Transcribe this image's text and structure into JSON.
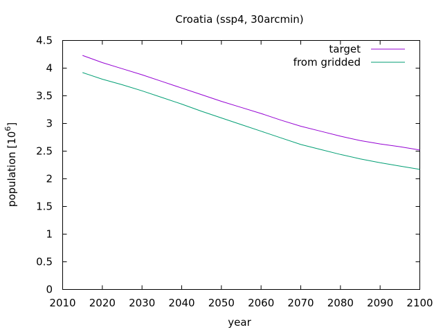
{
  "chart_data": {
    "type": "line",
    "title": "Croatia (ssp4, 30arcmin)",
    "xlabel": "year",
    "ylabel_main": "population [10",
    "ylabel_exp": "6",
    "ylabel_close": "]",
    "xlim": [
      2010,
      2100
    ],
    "ylim": [
      0,
      4.5
    ],
    "xticks": [
      "2010",
      "2020",
      "2030",
      "2040",
      "2050",
      "2060",
      "2070",
      "2080",
      "2090",
      "2100"
    ],
    "yticks": [
      "0",
      "0.5",
      "1",
      "1.5",
      "2",
      "2.5",
      "3",
      "3.5",
      "4",
      "4.5"
    ],
    "grid": false,
    "legend": "top-right",
    "x": [
      2015,
      2020,
      2025,
      2030,
      2035,
      2040,
      2045,
      2050,
      2055,
      2060,
      2065,
      2070,
      2075,
      2080,
      2085,
      2090,
      2095,
      2100
    ],
    "series": [
      {
        "name": "target",
        "color": "#9400d3",
        "values": [
          4.23,
          4.1,
          3.99,
          3.88,
          3.76,
          3.64,
          3.52,
          3.4,
          3.29,
          3.18,
          3.06,
          2.95,
          2.86,
          2.77,
          2.69,
          2.63,
          2.58,
          2.52
        ]
      },
      {
        "name": "from gridded",
        "color": "#009e73",
        "values": [
          3.92,
          3.8,
          3.7,
          3.59,
          3.47,
          3.35,
          3.22,
          3.1,
          2.98,
          2.86,
          2.74,
          2.62,
          2.53,
          2.44,
          2.36,
          2.29,
          2.23,
          2.17
        ]
      }
    ]
  }
}
